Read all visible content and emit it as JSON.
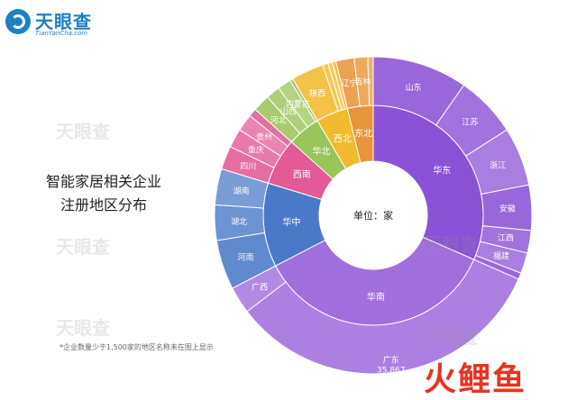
{
  "logo": {
    "name": "天眼查",
    "url": "TianYanCha.com"
  },
  "title_lines": [
    "智能家居相关企业",
    "注册地区分布"
  ],
  "footnote": "*企业数量少于1,500家的地区名称未在图上显示",
  "brand": "火鲤鱼",
  "watermark": "天眼查",
  "chart_data": {
    "type": "sunburst",
    "center_label": "单位：家",
    "regions": [
      {
        "name": "华东",
        "color": "#8a52d6",
        "provinces": [
          {
            "name": "山东",
            "value": 10500
          },
          {
            "name": "江苏",
            "value": 6800
          },
          {
            "name": "浙江",
            "value": 6500
          },
          {
            "name": "安徽",
            "value": 5000
          },
          {
            "name": "江西",
            "value": 2500
          },
          {
            "name": "福建",
            "value": 2300
          },
          {
            "name": "",
            "value": 700
          }
        ]
      },
      {
        "name": "华南",
        "color": "#a16fdc",
        "provinces": [
          {
            "name": "广东",
            "value": 35867,
            "value_label": "35,867"
          },
          {
            "name": "广西",
            "value": 3000
          }
        ]
      },
      {
        "name": "华中",
        "color": "#4a7ac7",
        "provinces": [
          {
            "name": "河南",
            "value": 5500
          },
          {
            "name": "湖北",
            "value": 3900
          },
          {
            "name": "湖南",
            "value": 4000
          }
        ]
      },
      {
        "name": "西南",
        "color": "#e25a96",
        "provinces": [
          {
            "name": "四川",
            "value": 2600
          },
          {
            "name": "重庆",
            "value": 2100
          },
          {
            "name": "贵州",
            "value": 1900
          },
          {
            "name": "",
            "value": 900
          }
        ]
      },
      {
        "name": "华北",
        "color": "#9bc45a",
        "provinces": [
          {
            "name": "河北",
            "value": 1900
          },
          {
            "name": "山西",
            "value": 1550
          },
          {
            "name": "内蒙古",
            "value": 1500
          },
          {
            "name": "",
            "value": 350
          }
        ]
      },
      {
        "name": "西北",
        "color": "#f2ba2e",
        "provinces": [
          {
            "name": "陕西",
            "value": 3600
          },
          {
            "name": "",
            "value": 600
          },
          {
            "name": "",
            "value": 500
          },
          {
            "name": "",
            "value": 400
          }
        ]
      },
      {
        "name": "东北",
        "color": "#e8953a",
        "provinces": [
          {
            "name": "辽宁",
            "value": 2000
          },
          {
            "name": "吉林",
            "value": 1500
          },
          {
            "name": "",
            "value": 600
          }
        ]
      }
    ]
  }
}
